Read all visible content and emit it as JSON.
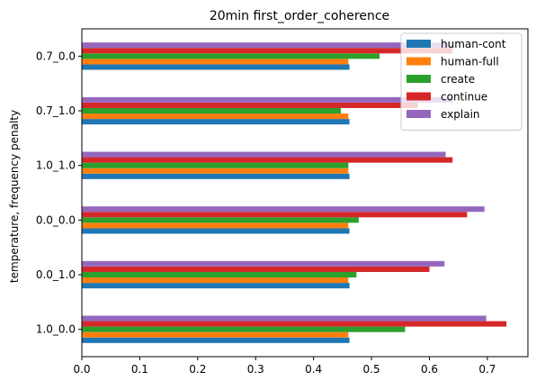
{
  "chart_data": {
    "type": "bar",
    "orientation": "horizontal",
    "title": "20min first_order_coherence",
    "xlabel": "",
    "ylabel": "temperature, frequency penalty",
    "xlim": [
      0,
      0.77
    ],
    "xticks": [
      0.0,
      0.1,
      0.2,
      0.3,
      0.4,
      0.5,
      0.6,
      0.7
    ],
    "xtick_labels": [
      "0.0",
      "0.1",
      "0.2",
      "0.3",
      "0.4",
      "0.5",
      "0.6",
      "0.7"
    ],
    "categories": [
      "1.0_0.0",
      "0.0_1.0",
      "0.0_0.0",
      "1.0_1.0",
      "0.7_1.0",
      "0.7_0.0"
    ],
    "series": [
      {
        "name": "human-cont",
        "color": "#1f77b4",
        "values": [
          0.462,
          0.462,
          0.462,
          0.462,
          0.462,
          0.462
        ]
      },
      {
        "name": "human-full",
        "color": "#ff7f0e",
        "values": [
          0.46,
          0.46,
          0.46,
          0.46,
          0.46,
          0.46
        ]
      },
      {
        "name": "create",
        "color": "#2ca02c",
        "values": [
          0.558,
          0.474,
          0.478,
          0.46,
          0.447,
          0.514
        ]
      },
      {
        "name": "continue",
        "color": "#d62728",
        "values": [
          0.733,
          0.6,
          0.665,
          0.64,
          0.58,
          0.64
        ]
      },
      {
        "name": "explain",
        "color": "#9467bd",
        "values": [
          0.698,
          0.626,
          0.695,
          0.628,
          0.64,
          0.64
        ]
      }
    ],
    "grid": false,
    "legend": "top-right"
  }
}
